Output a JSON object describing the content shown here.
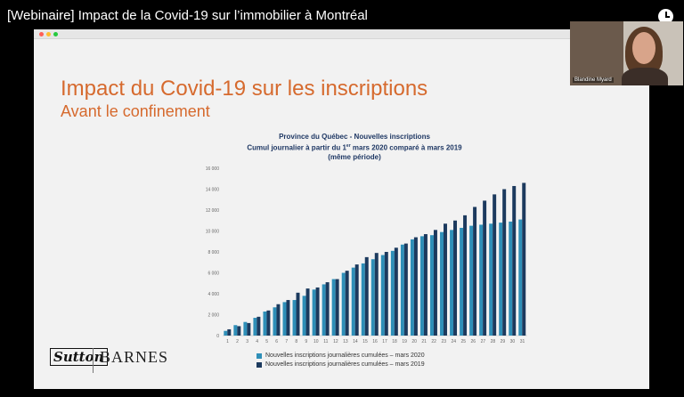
{
  "video": {
    "title": "[Webinaire] Impact de la Covid-19 sur l’immobilier à Montréal"
  },
  "webcam": {
    "name": "Blandine Myard"
  },
  "slide": {
    "title": "Impact du Covid-19 sur les inscriptions",
    "subtitle": "Avant le confinement",
    "logos": {
      "sutton": "Sutton",
      "barnes": "BARNES"
    }
  },
  "chart_data": {
    "type": "bar",
    "title_line1": "Province du Québec - Nouvelles inscriptions",
    "title_line2_a": "Cumul journalier à partir du 1",
    "title_line2_sup": "er",
    "title_line2_b": " mars 2020 comparé à mars 2019",
    "title_line3": "(même période)",
    "categories": [
      "1",
      "2",
      "3",
      "4",
      "5",
      "6",
      "7",
      "8",
      "9",
      "10",
      "11",
      "12",
      "13",
      "14",
      "15",
      "16",
      "17",
      "18",
      "19",
      "20",
      "21",
      "22",
      "23",
      "24",
      "25",
      "26",
      "27",
      "28",
      "29",
      "30",
      "31"
    ],
    "yticks": [
      "0",
      "2 000",
      "4 000",
      "6 000",
      "8 000",
      "10 000",
      "12 000",
      "14 000",
      "16 000"
    ],
    "ylim": [
      0,
      16000
    ],
    "series": [
      {
        "name": "Nouvelles inscriptions journalières cumulées – mars 2020",
        "color": "#2e8fb8",
        "values": [
          450,
          1000,
          1300,
          1700,
          2300,
          2700,
          3200,
          3400,
          3800,
          4400,
          4900,
          5400,
          6000,
          6500,
          6900,
          7300,
          7700,
          8100,
          8700,
          9200,
          9500,
          9600,
          9900,
          10100,
          10300,
          10500,
          10600,
          10700,
          10800,
          10900,
          11100
        ]
      },
      {
        "name": "Nouvelles inscriptions journalières cumulées – mars 2019",
        "color": "#1c3a5e",
        "values": [
          600,
          900,
          1200,
          1800,
          2400,
          3000,
          3400,
          4100,
          4500,
          4600,
          5100,
          5400,
          6200,
          6800,
          7500,
          7900,
          8000,
          8400,
          8800,
          9400,
          9700,
          10100,
          10700,
          11000,
          11500,
          12300,
          12900,
          13500,
          14000,
          14300,
          14600
        ]
      }
    ]
  },
  "colors": {
    "title_orange": "#d66a2e",
    "chart_navy": "#1f3864"
  }
}
